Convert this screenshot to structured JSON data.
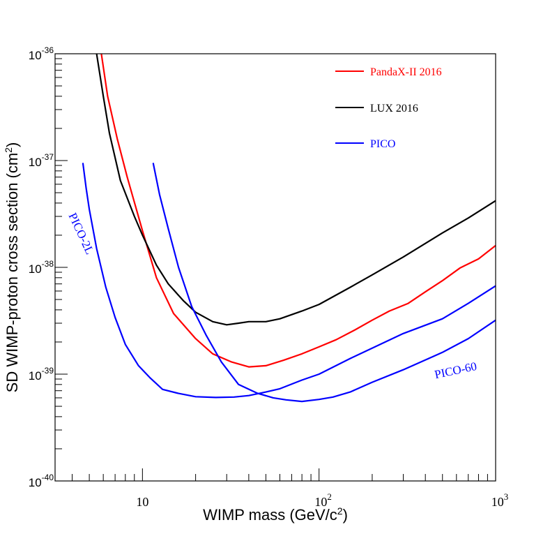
{
  "chart_data": {
    "type": "line",
    "log_x": true,
    "log_y": true,
    "xlabel": "WIMP mass (GeV/c",
    "xlabel_sup": "2",
    "xlabel_end": ")",
    "ylabel": "SD WIMP-proton cross section (cm",
    "ylabel_sup": "2",
    "ylabel_end": ")",
    "xlim": [
      3.2,
      1000
    ],
    "ylim": [
      1e-40,
      1e-36
    ],
    "x_ticks": [
      {
        "value": 10,
        "base": "10",
        "exp": ""
      },
      {
        "value": 100,
        "base": "10",
        "exp": "2"
      },
      {
        "value": 1000,
        "base": "10",
        "exp": "3"
      }
    ],
    "y_ticks": [
      {
        "value": 1e-36,
        "base": "10",
        "exp": "-36"
      },
      {
        "value": 1e-37,
        "base": "10",
        "exp": "-37"
      },
      {
        "value": 1e-38,
        "base": "10",
        "exp": "-38"
      },
      {
        "value": 1e-39,
        "base": "10",
        "exp": "-39"
      },
      {
        "value": 1e-40,
        "base": "10",
        "exp": "-40"
      }
    ],
    "legend": {
      "placement": "top-right",
      "entries": [
        {
          "label": "PandaX-II 2016",
          "color": "#ff0000"
        },
        {
          "label": "LUX 2016",
          "color": "#000000"
        },
        {
          "label": "PICO",
          "color": "#0000ff"
        }
      ]
    },
    "annotations": [
      {
        "text": "PICO-2L",
        "color": "#0000ff",
        "x": 4.3,
        "y": 2e-38,
        "rotate": 65
      },
      {
        "text": "PICO-60",
        "color": "#0000ff",
        "x": 600,
        "y": 1e-39,
        "rotate": -12
      }
    ],
    "series": [
      {
        "name": "PandaX-II 2016",
        "color": "#ff0000",
        "x": [
          5.85,
          6.35,
          7.2,
          8.2,
          10,
          12,
          15,
          20,
          25,
          32,
          40,
          50,
          63,
          80,
          100,
          125,
          160,
          200,
          250,
          320,
          400,
          500,
          630,
          800,
          1000
        ],
        "y": [
          1e-36,
          4e-37,
          1.6e-37,
          7e-38,
          2.2e-38,
          8e-39,
          3.7e-39,
          2.15e-39,
          1.55e-39,
          1.3e-39,
          1.17e-39,
          1.2e-39,
          1.35e-39,
          1.55e-39,
          1.8e-39,
          2.1e-39,
          2.6e-39,
          3.2e-39,
          3.9e-39,
          4.6e-39,
          5.9e-39,
          7.5e-39,
          9.9e-39,
          1.2e-38,
          1.6e-38
        ]
      },
      {
        "name": "LUX 2016",
        "color": "#000000",
        "x": [
          5.5,
          6,
          6.5,
          7.5,
          9,
          10,
          12,
          14,
          17,
          20,
          25,
          30,
          35,
          40,
          50,
          60,
          80,
          100,
          150,
          200,
          300,
          500,
          700,
          1000
        ],
        "y": [
          1e-36,
          4e-37,
          1.8e-37,
          6.5e-38,
          3e-38,
          2e-38,
          1.05e-38,
          7e-39,
          4.9e-39,
          3.8e-39,
          3.1e-39,
          2.9e-39,
          3e-39,
          3.1e-39,
          3.1e-39,
          3.3e-39,
          3.9e-39,
          4.5e-39,
          6.5e-39,
          8.5e-39,
          1.25e-38,
          2.1e-38,
          2.9e-38,
          4.2e-38
        ]
      },
      {
        "name": "PICO-2L",
        "color": "#0000ff",
        "x": [
          4.6,
          4.8,
          5.0,
          5.5,
          6.2,
          7.0,
          8.0,
          9.5,
          11,
          13,
          16,
          20,
          26,
          33,
          40,
          50,
          60,
          80,
          100,
          150,
          200,
          300,
          500,
          700,
          1000
        ],
        "y": [
          9.5e-38,
          5.5e-38,
          3.5e-38,
          1.5e-38,
          6.5e-39,
          3.4e-39,
          1.9e-39,
          1.2e-39,
          9.3e-40,
          7.2e-40,
          6.6e-40,
          6.15e-40,
          6.05e-40,
          6.1e-40,
          6.3e-40,
          6.8e-40,
          7.3e-40,
          8.8e-40,
          1e-39,
          1.4e-39,
          1.75e-39,
          2.4e-39,
          3.3e-39,
          4.6e-39,
          6.7e-39
        ]
      },
      {
        "name": "PICO-60",
        "color": "#0000ff",
        "x": [
          11.5,
          12.5,
          14,
          16,
          19,
          23,
          28,
          35,
          45,
          55,
          65,
          80,
          100,
          120,
          150,
          200,
          300,
          500,
          700,
          1000
        ],
        "y": [
          9.5e-38,
          4.8e-38,
          2.3e-38,
          1e-38,
          4.3e-39,
          2.3e-39,
          1.3e-39,
          8e-40,
          6.6e-40,
          6e-40,
          5.75e-40,
          5.55e-40,
          5.8e-40,
          6.1e-40,
          6.8e-40,
          8.4e-40,
          1.1e-39,
          1.6e-39,
          2.15e-39,
          3.2e-39
        ]
      }
    ]
  }
}
